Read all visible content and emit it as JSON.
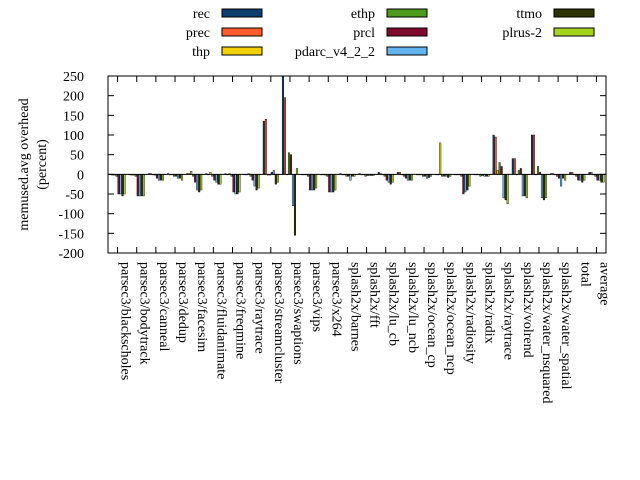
{
  "chart_data": {
    "type": "bar",
    "ylabel": "memused.avg overhead (percent)",
    "ylabel_lines": [
      "memused.avg overhead",
      "(percent)"
    ],
    "ylim": [
      -200,
      250
    ],
    "yticks": [
      -200,
      -150,
      -100,
      -50,
      0,
      50,
      100,
      150,
      200,
      250
    ],
    "legend_position": "top",
    "categories": [
      "parsec3/blackscholes",
      "parsec3/bodytrack",
      "parsec3/canneal",
      "parsec3/dedup",
      "parsec3/facesim",
      "parsec3/fluidanimate",
      "parsec3/freqmine",
      "parsec3/raytrace",
      "parsec3/streamcluster",
      "parsec3/swaptions",
      "parsec3/vips",
      "parsec3/x264",
      "splash2x/barnes",
      "splash2x/fft",
      "splash2x/lu_cb",
      "splash2x/lu_ncb",
      "splash2x/ocean_cp",
      "splash2x/ocean_ncp",
      "splash2x/radiosity",
      "splash2x/radix",
      "splash2x/raytrace",
      "splash2x/volrend",
      "splash2x/water_nsquared",
      "splash2x/water_spatial",
      "total",
      "average"
    ],
    "series": [
      {
        "name": "rec",
        "color": "#0b3f6e",
        "values": [
          0,
          0,
          2,
          2,
          2,
          2,
          2,
          0,
          135,
          250,
          0,
          0,
          2,
          2,
          5,
          5,
          0,
          0,
          0,
          0,
          100,
          40,
          100,
          2,
          5,
          5
        ]
      },
      {
        "name": "prec",
        "color": "#ff5a2a",
        "values": [
          -2,
          -2,
          2,
          0,
          2,
          0,
          0,
          0,
          140,
          195,
          0,
          0,
          0,
          0,
          2,
          5,
          0,
          0,
          0,
          0,
          95,
          40,
          100,
          2,
          5,
          5
        ]
      },
      {
        "name": "thp",
        "color": "#f5d000",
        "values": [
          -2,
          -2,
          0,
          0,
          8,
          5,
          2,
          2,
          -2,
          0,
          0,
          -2,
          0,
          0,
          0,
          0,
          0,
          80,
          0,
          0,
          10,
          0,
          0,
          0,
          0,
          0
        ]
      },
      {
        "name": "ethp",
        "color": "#4e9a1c",
        "values": [
          -5,
          -5,
          -2,
          -5,
          -5,
          -5,
          -5,
          -5,
          -2,
          55,
          -5,
          -5,
          -5,
          -5,
          -5,
          -5,
          -5,
          -5,
          -5,
          -5,
          30,
          10,
          20,
          -5,
          -5,
          -5
        ]
      },
      {
        "name": "prcl",
        "color": "#7d0b2e",
        "values": [
          -50,
          -55,
          -10,
          -5,
          -20,
          -15,
          -45,
          -15,
          5,
          50,
          -40,
          -45,
          -5,
          -3,
          -15,
          -10,
          -5,
          -5,
          -50,
          -3,
          20,
          15,
          5,
          -10,
          -15,
          -15
        ]
      },
      {
        "name": "pdarc_v4_2_2",
        "color": "#62b4ee",
        "values": [
          -50,
          -55,
          -15,
          -10,
          -40,
          -20,
          -50,
          -30,
          10,
          -80,
          -40,
          -45,
          -15,
          -3,
          -20,
          -15,
          -10,
          -5,
          -45,
          -5,
          -60,
          -55,
          -60,
          -30,
          -15,
          -15
        ]
      },
      {
        "name": "ttmo",
        "color": "#2e3305",
        "values": [
          -55,
          -55,
          -15,
          -10,
          -45,
          -25,
          -50,
          -40,
          -25,
          -155,
          -40,
          -45,
          -5,
          -3,
          -25,
          -15,
          -8,
          -8,
          -40,
          -5,
          -65,
          -55,
          -65,
          -10,
          -20,
          -20
        ]
      },
      {
        "name": "plrus-2",
        "color": "#a5d21f",
        "values": [
          -50,
          -55,
          -15,
          -15,
          -40,
          -25,
          -45,
          -35,
          -20,
          15,
          -35,
          -40,
          -5,
          -3,
          -20,
          -15,
          -5,
          -5,
          -30,
          -5,
          -75,
          -60,
          -60,
          -15,
          -15,
          -20
        ]
      }
    ]
  }
}
